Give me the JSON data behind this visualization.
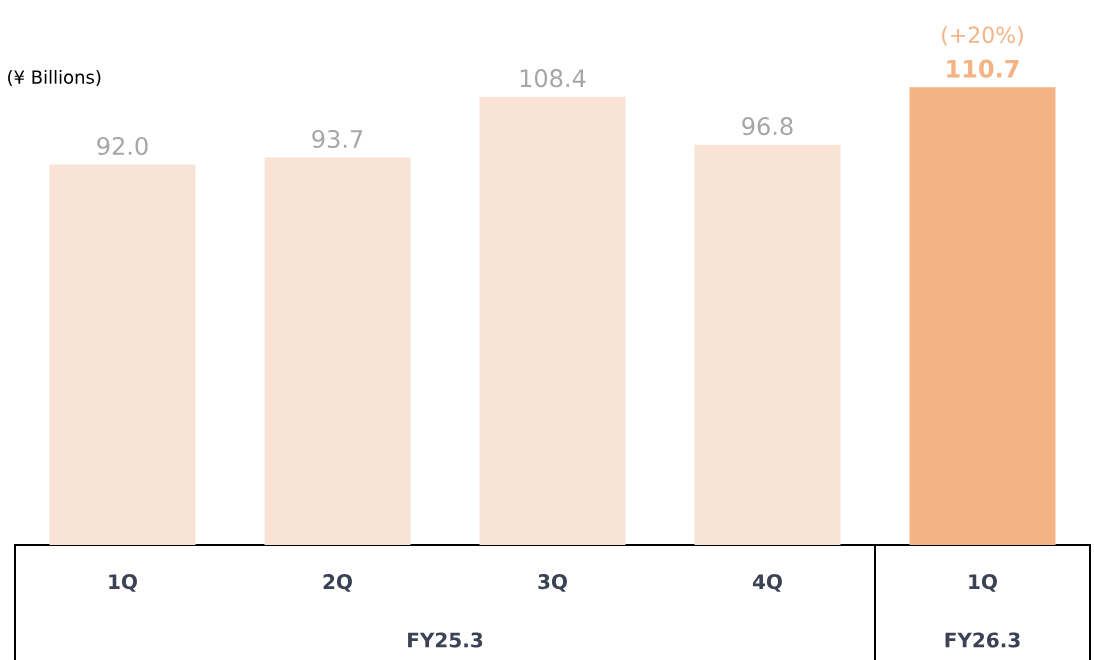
{
  "chart_data": {
    "type": "bar",
    "ylabel": "(¥ Billions)",
    "categories": [
      "1Q",
      "2Q",
      "3Q",
      "4Q",
      "1Q"
    ],
    "values": [
      92.0,
      93.7,
      108.4,
      96.8,
      110.7
    ],
    "value_labels": [
      "92.0",
      "93.7",
      "108.4",
      "96.8",
      "110.7"
    ],
    "colors": [
      "#f9e3d7",
      "#f9e3d7",
      "#f9e3d7",
      "#f9e3d7",
      "#f3b385"
    ],
    "tick_labels": "x",
    "annotations": [
      "(+20%)",
      "FY25.3",
      "FY26.3"
    ]
  }
}
